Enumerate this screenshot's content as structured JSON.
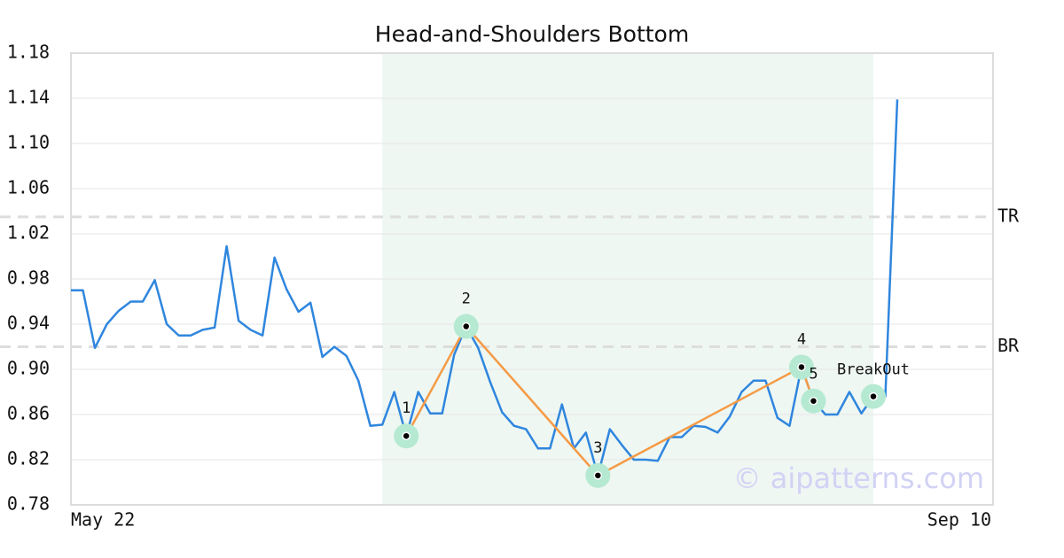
{
  "chart_data": {
    "type": "line",
    "title": "Head-and-Shoulders Bottom",
    "categories": [
      "May 22",
      null,
      null,
      null,
      null,
      null,
      null,
      null,
      null,
      null,
      null,
      null,
      null,
      null,
      null,
      null,
      null,
      null,
      null,
      null,
      null,
      null,
      null,
      null,
      null,
      null,
      null,
      null,
      null,
      null,
      null,
      null,
      null,
      null,
      null,
      null,
      null,
      null,
      null,
      null,
      null,
      null,
      null,
      null,
      null,
      null,
      null,
      null,
      null,
      null,
      null,
      null,
      null,
      null,
      null,
      null,
      null,
      null,
      null,
      null,
      null,
      null,
      null,
      null,
      null,
      null,
      null,
      null,
      null,
      "Sep 10"
    ],
    "values": [
      0.97,
      0.97,
      0.919,
      0.94,
      0.952,
      0.96,
      0.96,
      0.979,
      0.94,
      0.93,
      0.93,
      0.935,
      0.937,
      1.009,
      0.943,
      0.935,
      0.93,
      0.999,
      0.971,
      0.951,
      0.959,
      0.911,
      0.92,
      0.912,
      0.89,
      0.85,
      0.851,
      0.88,
      0.841,
      0.88,
      0.861,
      0.861,
      0.913,
      0.938,
      0.919,
      0.889,
      0.862,
      0.85,
      0.847,
      0.83,
      0.83,
      0.869,
      0.83,
      0.844,
      0.806,
      0.847,
      0.833,
      0.82,
      0.82,
      0.819,
      0.84,
      0.84,
      0.85,
      0.849,
      0.844,
      0.858,
      0.88,
      0.89,
      0.89,
      0.857,
      0.85,
      0.902,
      0.872,
      0.86,
      0.86,
      0.88,
      0.861,
      0.876,
      0.876,
      1.139
    ],
    "color": "#2f86de",
    "ylim": [
      0.78,
      1.18
    ],
    "yticks": [
      0.78,
      0.82,
      0.86,
      {
        "value": 0.9,
        "label": "0.90"
      },
      0.94,
      0.98,
      1.02,
      1.06,
      {
        "value": 1.1,
        "label": "1.10"
      },
      1.14,
      1.18
    ],
    "grid": true,
    "shade": {
      "start": 26,
      "end": 67,
      "color": "#eef7f2"
    },
    "levels": [
      {
        "name": "TR",
        "value": 1.035
      },
      {
        "name": "BR",
        "value": 0.92
      }
    ],
    "pattern": {
      "color": "#f59a45",
      "marker_color": "#b5e9d2",
      "points": [
        {
          "label": "1",
          "index": 28,
          "value": 0.841
        },
        {
          "label": "2",
          "index": 33,
          "value": 0.938
        },
        {
          "label": "3",
          "index": 44,
          "value": 0.806
        },
        {
          "label": "4",
          "index": 61,
          "value": 0.902
        },
        {
          "label": "5",
          "index": 62,
          "value": 0.872
        }
      ]
    },
    "breakout": {
      "label": "BreakOut",
      "index": 67,
      "value": 0.876
    },
    "watermark": "© aipatterns.com"
  }
}
